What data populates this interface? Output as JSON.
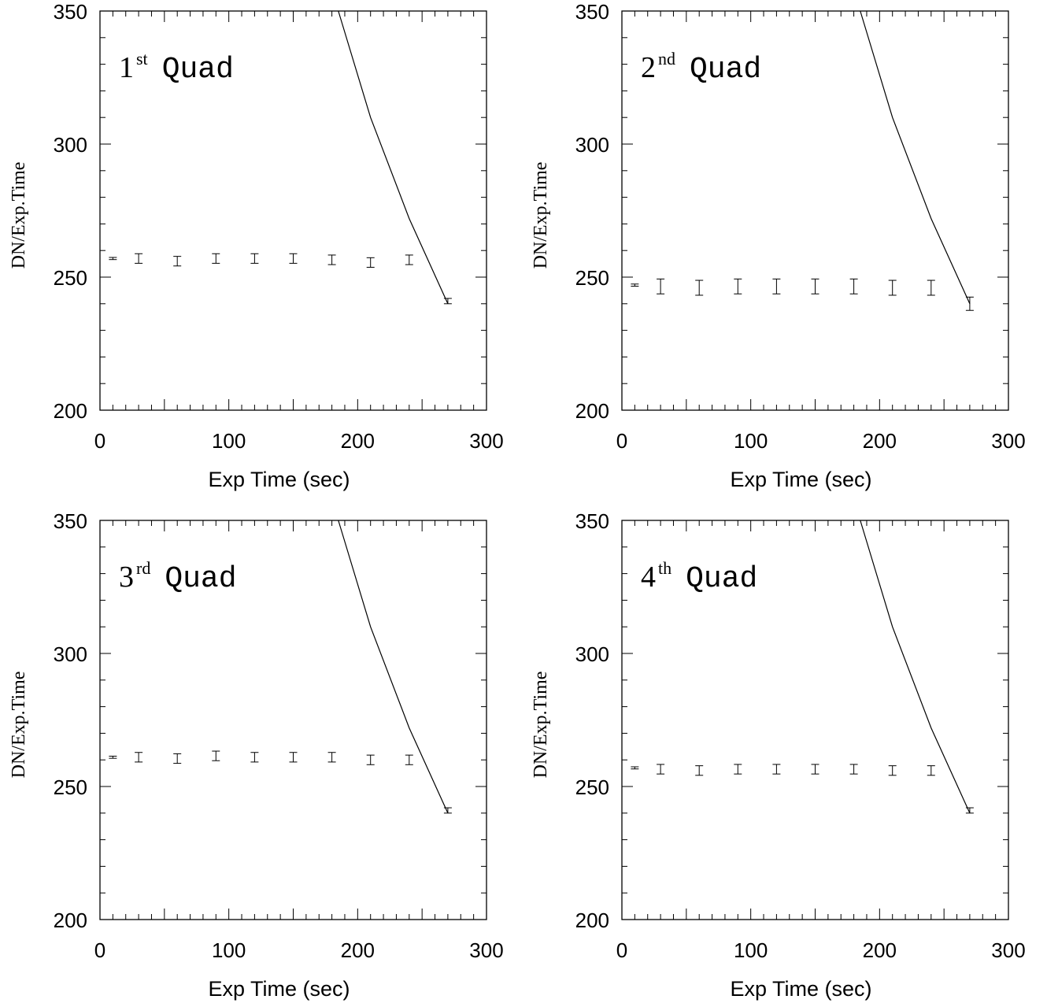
{
  "chart_data": [
    {
      "type": "scatter",
      "panel_label": {
        "number": "1",
        "suffix": "st",
        "word": "Quad"
      },
      "xlabel": "Exp Time (sec)",
      "ylabel": "DN/Exp.Time",
      "xlim": [
        0,
        300
      ],
      "ylim": [
        200,
        350
      ],
      "xticks": [
        "0",
        "100",
        "200",
        "300"
      ],
      "yticks": [
        "200",
        "250",
        "300",
        "350"
      ],
      "series": [
        {
          "kind": "errorbar",
          "x": [
            10,
            30,
            60,
            90,
            120,
            150,
            180,
            210,
            240,
            270
          ],
          "y": [
            257,
            257,
            256,
            257,
            257,
            257,
            256.5,
            255.5,
            256.5,
            241
          ],
          "yerr": [
            0.4,
            1.8,
            1.8,
            1.8,
            1.8,
            1.8,
            1.8,
            1.8,
            1.8,
            1.0
          ]
        },
        {
          "kind": "line",
          "x": [
            185,
            210,
            240,
            270
          ],
          "y": [
            350,
            310,
            272,
            240
          ]
        }
      ]
    },
    {
      "type": "scatter",
      "panel_label": {
        "number": "2",
        "suffix": "nd",
        "word": "Quad"
      },
      "xlabel": "Exp Time (sec)",
      "ylabel": "DN/Exp.Time",
      "xlim": [
        0,
        300
      ],
      "ylim": [
        200,
        350
      ],
      "xticks": [
        "0",
        "100",
        "200",
        "300"
      ],
      "yticks": [
        "200",
        "250",
        "300",
        "350"
      ],
      "series": [
        {
          "kind": "errorbar",
          "x": [
            10,
            30,
            60,
            90,
            120,
            150,
            180,
            210,
            240,
            270
          ],
          "y": [
            247,
            246.5,
            246,
            246.5,
            246.5,
            246.5,
            246.5,
            246,
            246,
            240
          ],
          "yerr": [
            0.4,
            2.8,
            2.8,
            2.8,
            2.8,
            2.8,
            2.8,
            2.8,
            2.8,
            2.5
          ]
        },
        {
          "kind": "line",
          "x": [
            185,
            210,
            240,
            270
          ],
          "y": [
            350,
            310,
            272,
            240
          ]
        }
      ]
    },
    {
      "type": "scatter",
      "panel_label": {
        "number": "3",
        "suffix": "rd",
        "word": "Quad"
      },
      "xlabel": "Exp Time (sec)",
      "ylabel": "DN/Exp.Time",
      "xlim": [
        0,
        300
      ],
      "ylim": [
        200,
        350
      ],
      "xticks": [
        "0",
        "100",
        "200",
        "300"
      ],
      "yticks": [
        "200",
        "250",
        "300",
        "350"
      ],
      "series": [
        {
          "kind": "errorbar",
          "x": [
            10,
            30,
            60,
            90,
            120,
            150,
            180,
            210,
            240,
            270
          ],
          "y": [
            261,
            261,
            260.5,
            261.5,
            261,
            261,
            261,
            260,
            260,
            241
          ],
          "yerr": [
            0.4,
            1.8,
            1.8,
            1.8,
            1.8,
            1.8,
            1.8,
            1.8,
            1.8,
            1.0
          ]
        },
        {
          "kind": "line",
          "x": [
            185,
            210,
            240,
            270
          ],
          "y": [
            350,
            310,
            272,
            240
          ]
        }
      ]
    },
    {
      "type": "scatter",
      "panel_label": {
        "number": "4",
        "suffix": "th",
        "word": "Quad"
      },
      "xlabel": "Exp Time (sec)",
      "ylabel": "DN/Exp.Time",
      "xlim": [
        0,
        300
      ],
      "ylim": [
        200,
        350
      ],
      "xticks": [
        "0",
        "100",
        "200",
        "300"
      ],
      "yticks": [
        "200",
        "250",
        "300",
        "350"
      ],
      "series": [
        {
          "kind": "errorbar",
          "x": [
            10,
            30,
            60,
            90,
            120,
            150,
            180,
            210,
            240,
            270
          ],
          "y": [
            257,
            256.5,
            256,
            256.5,
            256.5,
            256.5,
            256.5,
            256,
            256,
            241
          ],
          "yerr": [
            0.4,
            1.8,
            1.8,
            1.8,
            1.8,
            1.8,
            1.8,
            1.8,
            1.8,
            1.0
          ]
        },
        {
          "kind": "line",
          "x": [
            185,
            210,
            240,
            270
          ],
          "y": [
            350,
            310,
            272,
            240
          ]
        }
      ]
    }
  ]
}
